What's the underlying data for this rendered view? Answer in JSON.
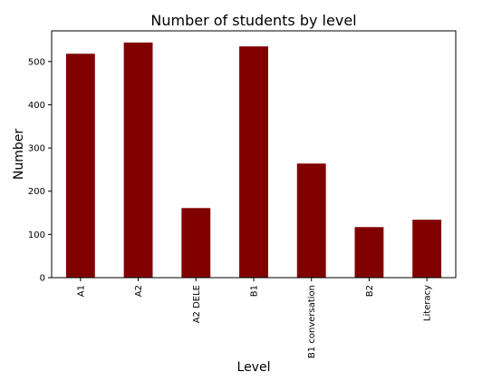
{
  "chart_data": {
    "type": "bar",
    "title": "Number of students by level",
    "xlabel": "Level",
    "ylabel": "Number",
    "categories": [
      "A1",
      "A2",
      "A2 DELE",
      "B1",
      "B1 conversation",
      "B2",
      "Literacy"
    ],
    "values": [
      518,
      544,
      161,
      535,
      264,
      117,
      134
    ],
    "ylim": [
      0,
      571
    ],
    "yticks": [
      0,
      100,
      200,
      300,
      400,
      500
    ],
    "bar_color": "#800000",
    "grid": false,
    "legend": "none"
  }
}
